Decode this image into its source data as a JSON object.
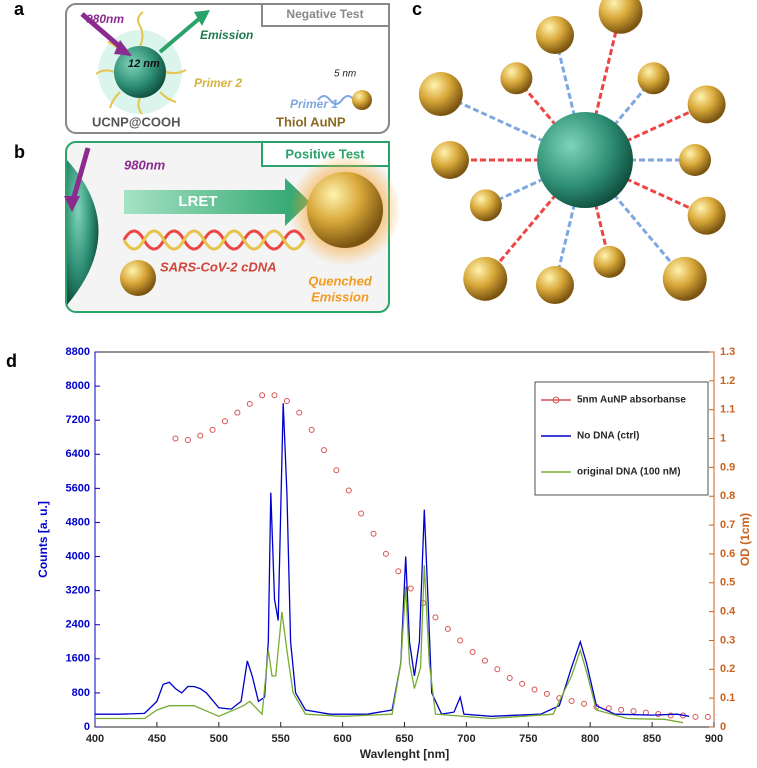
{
  "illustrations": {
    "panel_a": {
      "label": "a",
      "test": "Negative Test",
      "laser": "980nm",
      "emission": "Emission",
      "core_size": "12 nm",
      "primer2": "Primer 2",
      "gold_size": "5 nm",
      "primer1": "Primer 1",
      "ucnp": "UCNP@COOH",
      "aunp": "Thiol AuNP"
    },
    "panel_b": {
      "label": "b",
      "test": "Positive Test",
      "laser": "980nm",
      "transfer": "LRET",
      "target": "SARS-CoV-2 cDNA",
      "quenched_1": "Quenched",
      "quenched_2": "Emission"
    },
    "panel_c": {
      "label": "c"
    },
    "panel_d": {
      "label": "d"
    }
  },
  "chart_data": {
    "type": "line",
    "xlabel": "Wavlenght [nm]",
    "ylabel": "Counts [a. u.]",
    "y2label": "OD (1cm)",
    "xlim": [
      400,
      900
    ],
    "xticks": [
      400,
      450,
      500,
      550,
      600,
      650,
      700,
      750,
      800,
      850,
      900
    ],
    "ylim": [
      0,
      8800
    ],
    "yticks": [
      0,
      800,
      1600,
      2400,
      3200,
      4000,
      4800,
      5600,
      6400,
      7200,
      8000,
      8800
    ],
    "y2lim": [
      0,
      1.3
    ],
    "y2ticks": [
      0,
      0.1,
      0.2,
      0.3,
      0.4,
      0.5,
      0.6,
      0.7,
      0.8,
      0.9,
      1,
      1.1,
      1.2,
      1.3
    ],
    "left_axis_color": "#0000cc",
    "right_axis_color": "#c8621e",
    "legend": "upper-right",
    "series": [
      {
        "name": "5nm AuNP absorbanse",
        "color": "#d9534f",
        "axis": "y2",
        "marker": "circle",
        "x": [
          465,
          475,
          485,
          495,
          505,
          515,
          525,
          535,
          545,
          555,
          565,
          575,
          585,
          595,
          605,
          615,
          625,
          635,
          645,
          655,
          665,
          675,
          685,
          695,
          705,
          715,
          725,
          735,
          745,
          755,
          765,
          775,
          785,
          795,
          805,
          815,
          825,
          835,
          845,
          855,
          865,
          875,
          885,
          895
        ],
        "values": [
          1.0,
          0.995,
          1.01,
          1.03,
          1.06,
          1.09,
          1.12,
          1.15,
          1.15,
          1.13,
          1.09,
          1.03,
          0.96,
          0.89,
          0.82,
          0.74,
          0.67,
          0.6,
          0.54,
          0.48,
          0.43,
          0.38,
          0.34,
          0.3,
          0.26,
          0.23,
          0.2,
          0.17,
          0.15,
          0.13,
          0.115,
          0.1,
          0.09,
          0.08,
          0.07,
          0.065,
          0.06,
          0.055,
          0.05,
          0.045,
          0.04,
          0.04,
          0.035,
          0.035
        ]
      },
      {
        "name": "No DNA (ctrl)",
        "color": "#0000cc",
        "x": [
          400,
          420,
          440,
          450,
          455,
          460,
          465,
          470,
          475,
          480,
          485,
          490,
          500,
          510,
          518,
          523,
          527,
          532,
          537,
          540,
          542,
          545,
          548,
          552,
          555,
          558,
          562,
          570,
          590,
          620,
          640,
          647,
          651,
          654,
          658,
          662,
          666,
          669,
          672,
          680,
          690,
          695,
          698,
          720,
          760,
          775,
          785,
          792,
          797,
          805,
          820,
          850,
          870,
          880
        ],
        "values": [
          300,
          300,
          320,
          600,
          1000,
          1050,
          900,
          800,
          950,
          950,
          900,
          800,
          450,
          420,
          600,
          1550,
          1200,
          600,
          700,
          2000,
          5500,
          3000,
          2500,
          7600,
          5500,
          2000,
          800,
          400,
          300,
          300,
          400,
          1500,
          4000,
          2000,
          1200,
          2000,
          5100,
          3000,
          800,
          300,
          350,
          700,
          300,
          250,
          300,
          500,
          1400,
          2000,
          1500,
          500,
          300,
          280,
          300,
          250
        ]
      },
      {
        "name": "original DNA (100 nM)",
        "color": "#77ac30",
        "x": [
          400,
          440,
          450,
          460,
          480,
          500,
          520,
          525,
          535,
          540,
          543,
          546,
          551,
          555,
          560,
          570,
          600,
          640,
          647,
          651,
          654,
          658,
          663,
          666,
          670,
          675,
          720,
          770,
          785,
          792,
          797,
          805,
          830,
          860,
          875
        ],
        "values": [
          200,
          200,
          400,
          500,
          500,
          250,
          500,
          600,
          300,
          1800,
          1200,
          1200,
          2700,
          1800,
          800,
          300,
          250,
          300,
          1500,
          3300,
          1500,
          900,
          1400,
          3800,
          1500,
          300,
          200,
          300,
          1200,
          1800,
          1300,
          400,
          200,
          180,
          100
        ]
      }
    ]
  }
}
